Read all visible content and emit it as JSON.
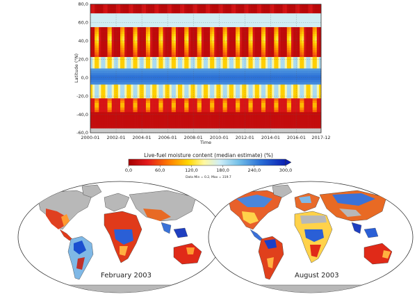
{
  "chart_data": [
    {
      "type": "heatmap",
      "title": "",
      "xlabel": "Time",
      "ylabel": "Latitude (°N)",
      "x_ticks": [
        "2000-01",
        "2002-01",
        "2004-01",
        "2006-01",
        "2008-01",
        "2010-01",
        "2012-01",
        "2014-01",
        "2016-01",
        "2017-12"
      ],
      "y_ticks": [
        "80,0",
        "60,0",
        "40,0",
        "20,0",
        "0,0",
        "-20,0",
        "-40,0",
        "-60,0"
      ],
      "xlim": [
        "2000-01",
        "2017-12"
      ],
      "ylim": [
        -60,
        80
      ],
      "grid": true,
      "pattern_note": "Seasonal oscillation of live-fuel moisture content by latitude; high values (blue) near the equator and around 20°N/20°S, low values (red) at high latitudes and in dry seasons."
    },
    {
      "type": "colorbar",
      "title": "Live-fuel moisture content (median estimate) (%)",
      "ticks": [
        "0,0",
        "60,0",
        "120,0",
        "180,0",
        "240,0",
        "300,0"
      ],
      "range": [
        0,
        300
      ],
      "stats": "Data Min = 0.2, Max = 319.7",
      "colors": [
        "#a50000",
        "#e31a1c",
        "#ff7f00",
        "#ffd700",
        "#fff8a0",
        "#cfeef7",
        "#74c0e8",
        "#2a6fd6",
        "#0a1fb3"
      ]
    },
    {
      "type": "map",
      "label": "February 2003",
      "projection": "Robinson"
    },
    {
      "type": "map",
      "label": "August 2003",
      "projection": "Robinson"
    }
  ]
}
